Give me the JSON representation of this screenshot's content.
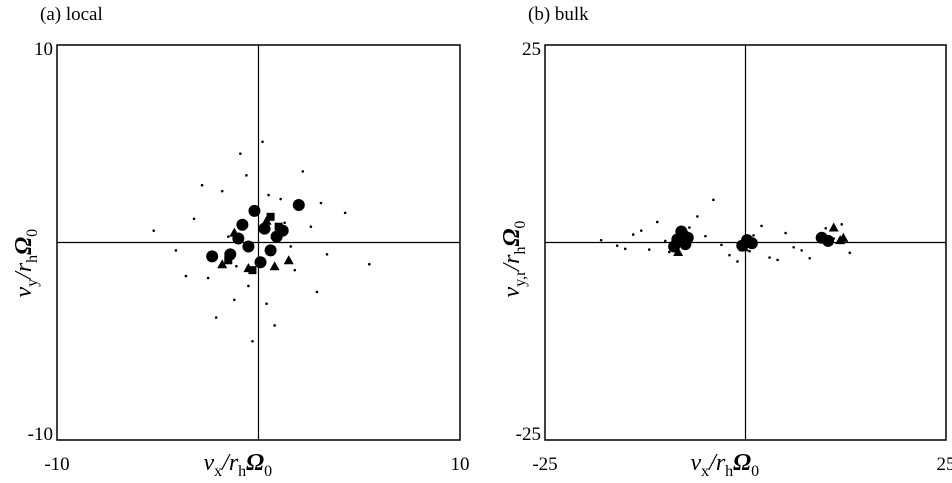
{
  "chart_data": [
    {
      "type": "scatter",
      "title": "(a) local",
      "xlabel": [
        "v",
        "x",
        "/r",
        "h",
        "Ω",
        "0"
      ],
      "ylabel": [
        "v",
        "y",
        "/r",
        "h",
        "Ω",
        "0"
      ],
      "xlim": [
        -10,
        10
      ],
      "ylim": [
        -10,
        10
      ],
      "xticks": [
        -10,
        10
      ],
      "yticks": [
        -10,
        10
      ],
      "series": [
        {
          "marker": "dot",
          "color": "#000000",
          "x": [
            -3.2,
            -2.5,
            -1.8,
            -1.2,
            -0.6,
            0.4,
            1.1,
            1.8,
            2.6,
            3.4,
            -4.1,
            4.3,
            -2.1,
            2.2,
            -0.9,
            0.8,
            -1.5,
            1.6,
            -3.6,
            3.1,
            -0.3,
            0.2,
            -2.8,
            2.9,
            -5.2,
            5.5,
            -1.1,
            1.3,
            0.5,
            -0.5
          ],
          "y": [
            1.2,
            -1.8,
            2.6,
            -2.9,
            3.4,
            -3.1,
            2.2,
            -1.4,
            0.8,
            -0.6,
            -0.4,
            1.5,
            -3.8,
            3.6,
            4.5,
            -4.2,
            0.3,
            -0.2,
            -1.7,
            2.0,
            -5.0,
            5.1,
            2.9,
            -2.5,
            0.6,
            -1.1,
            -1.2,
            1.0,
            2.4,
            -2.2
          ]
        },
        {
          "marker": "circle",
          "color": "#000000",
          "x": [
            -0.8,
            0.6,
            -0.2,
            1.2,
            -1.4,
            0.1,
            2.0,
            -2.3,
            -0.5,
            0.9,
            -1.0,
            0.3
          ],
          "y": [
            0.9,
            -0.4,
            1.6,
            0.6,
            -0.6,
            -1.0,
            1.9,
            -0.7,
            -0.2,
            0.3,
            0.2,
            0.7
          ]
        },
        {
          "marker": "triangle",
          "color": "#000000",
          "x": [
            -1.8,
            -0.5,
            0.8,
            -1.2,
            0.4,
            1.5
          ],
          "y": [
            -1.1,
            -1.3,
            -1.2,
            0.5,
            1.1,
            -0.9
          ]
        },
        {
          "marker": "square",
          "color": "#000000",
          "x": [
            -1.5,
            1.0,
            -0.3,
            0.6
          ],
          "y": [
            -0.9,
            0.8,
            -1.4,
            1.3
          ]
        }
      ]
    },
    {
      "type": "scatter",
      "title": "(b) bulk",
      "xlabel": [
        "v",
        "x",
        "/r",
        "h",
        "Ω",
        "0"
      ],
      "ylabel": [
        "v",
        "y,r",
        "/r",
        "h",
        "Ω",
        "0"
      ],
      "xlim": [
        -25,
        25
      ],
      "ylim": [
        -25,
        25
      ],
      "xticks": [
        -25,
        25
      ],
      "yticks": [
        -25,
        25
      ],
      "series": [
        {
          "marker": "dot",
          "color": "#000000",
          "x": [
            -18,
            -15,
            -13,
            -11,
            -9.5,
            -6,
            -4,
            -2,
            1,
            3,
            5,
            7,
            11,
            13,
            -16,
            -12,
            -5,
            -1,
            2,
            6,
            8,
            10,
            -14,
            -3,
            4,
            12,
            -7,
            -10,
            0.5,
            -8
          ],
          "y": [
            0.3,
            -0.8,
            1.5,
            2.6,
            -1.2,
            3.3,
            5.4,
            -1.6,
            0.9,
            -1.9,
            1.2,
            -1.0,
            0.5,
            -1.3,
            -0.4,
            -0.9,
            0.8,
            -2.4,
            2.1,
            -0.6,
            -2.0,
            1.8,
            1.0,
            -0.3,
            -2.2,
            2.3,
            1.9,
            0.2,
            -1.1,
            -0.2
          ]
        },
        {
          "marker": "circle",
          "color": "#000000",
          "x": [
            -8.5,
            -7.8,
            -7.2,
            -8.9,
            -7.5,
            0.2,
            -0.4,
            0.8,
            9.5,
            10.3,
            -8.0
          ],
          "y": [
            0.4,
            1.0,
            0.6,
            -0.5,
            -0.2,
            0.3,
            -0.4,
            -0.1,
            0.6,
            0.2,
            1.4
          ]
        },
        {
          "marker": "triangle",
          "color": "#000000",
          "x": [
            11.0,
            11.8,
            -0.2,
            12.2,
            -8.4
          ],
          "y": [
            1.9,
            0.3,
            -0.6,
            0.6,
            -1.2
          ]
        }
      ]
    }
  ]
}
